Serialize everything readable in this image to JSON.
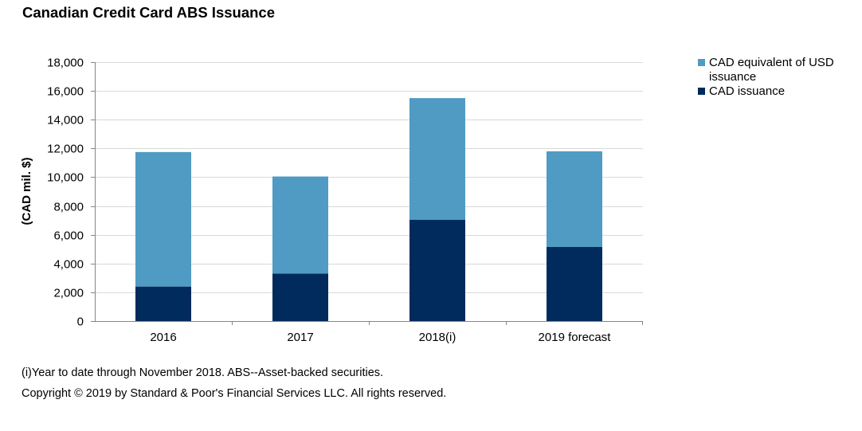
{
  "chart_data": {
    "type": "bar",
    "stacked": true,
    "title": "Canadian Credit Card ABS Issuance",
    "xlabel": "",
    "ylabel": "(CAD mil. $)",
    "ylim": [
      0,
      18000
    ],
    "yticks": [
      0,
      2000,
      4000,
      6000,
      8000,
      10000,
      12000,
      14000,
      16000,
      18000
    ],
    "ytick_labels": [
      "0",
      "2,000",
      "4,000",
      "6,000",
      "8,000",
      "10,000",
      "12,000",
      "14,000",
      "16,000",
      "18,000"
    ],
    "categories": [
      "2016",
      "2017",
      "2018(i)",
      "2019 forecast"
    ],
    "series": [
      {
        "name": "CAD issuance",
        "values": [
          2400,
          3300,
          7050,
          5150
        ],
        "color": "#002b5c"
      },
      {
        "name": "CAD equivalent of USD issuance",
        "values": [
          9350,
          6750,
          8450,
          6650
        ],
        "color": "#4f9bc4"
      }
    ],
    "grid": true,
    "legend_position": "right",
    "legend_order": [
      "CAD equivalent of USD issuance",
      "CAD issuance"
    ]
  },
  "footnotes": {
    "note": "(i)Year to date through November 2018. ABS--Asset-backed securities.",
    "copyright": "Copyright © 2019 by Standard & Poor's Financial Services LLC. All rights reserved."
  },
  "colors": {
    "gridline": "#d9d9d9",
    "axis": "#868686"
  }
}
